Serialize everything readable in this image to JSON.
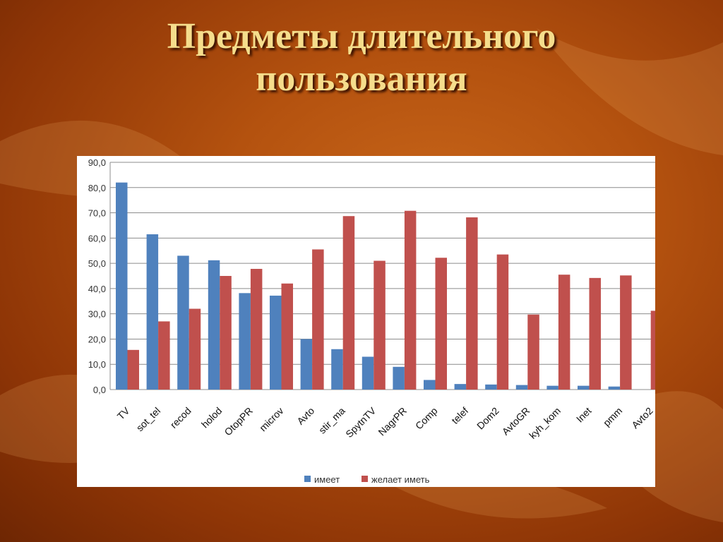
{
  "slide": {
    "title_line1": "Предметы длительного",
    "title_line2": "пользования"
  },
  "colors": {
    "series1": "#4f81bd",
    "series2": "#c0504d"
  },
  "chart_data": {
    "type": "bar",
    "title": "",
    "xlabel": "",
    "ylabel": "",
    "ylim": [
      0,
      90
    ],
    "yticks": [
      "0,0",
      "10,0",
      "20,0",
      "30,0",
      "40,0",
      "50,0",
      "60,0",
      "70,0",
      "80,0",
      "90,0"
    ],
    "grid": true,
    "legend_position": "bottom",
    "categories": [
      "TV",
      "sot_tel",
      "recod",
      "holod",
      "OtopPR",
      "microv",
      "Avto",
      "stir_ma",
      "SpytnTV",
      "NagrPR",
      "Comp",
      "telef",
      "Dom2",
      "AvtoGR",
      "kyh_kom",
      "Inet",
      "pmm",
      "Avto2"
    ],
    "series": [
      {
        "name": "имеет",
        "values": [
          82,
          61.5,
          53,
          51.2,
          38.2,
          37.2,
          20,
          16,
          13,
          9,
          3.8,
          2.2,
          2,
          1.8,
          1.5,
          1.5,
          1.2,
          0
        ]
      },
      {
        "name": "желает иметь",
        "values": [
          15.7,
          27,
          32,
          45,
          47.8,
          42,
          55.5,
          68.7,
          51,
          70.8,
          52.2,
          68.2,
          53.5,
          29.7,
          45.5,
          44.2,
          45.2,
          31.2
        ]
      }
    ]
  }
}
